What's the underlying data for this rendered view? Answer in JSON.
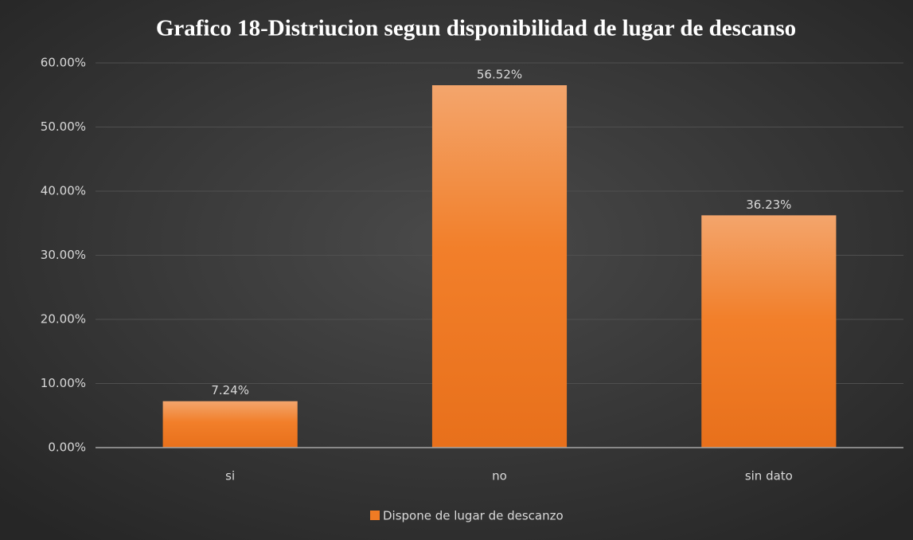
{
  "chart_data": {
    "type": "bar",
    "title": "Grafico 18-Distriucion segun disponibilidad de lugar de descanso",
    "categories": [
      "si",
      "no",
      "sin dato"
    ],
    "series": [
      {
        "name": "Dispone de lugar de descanzo",
        "color": "#f07b24",
        "values": [
          7.24,
          56.52,
          36.23
        ],
        "value_labels": [
          "7.24%",
          "56.52%",
          "36.23%"
        ]
      }
    ],
    "ylim": [
      0,
      60
    ],
    "yticks": [
      {
        "value": 0,
        "label": "0.00%"
      },
      {
        "value": 10,
        "label": "10.00%"
      },
      {
        "value": 20,
        "label": "20.00%"
      },
      {
        "value": 30,
        "label": "30.00%"
      },
      {
        "value": 40,
        "label": "40.00%"
      },
      {
        "value": 50,
        "label": "50.00%"
      },
      {
        "value": 60,
        "label": "60.00%"
      }
    ],
    "grid": true,
    "legend": "bottom"
  }
}
